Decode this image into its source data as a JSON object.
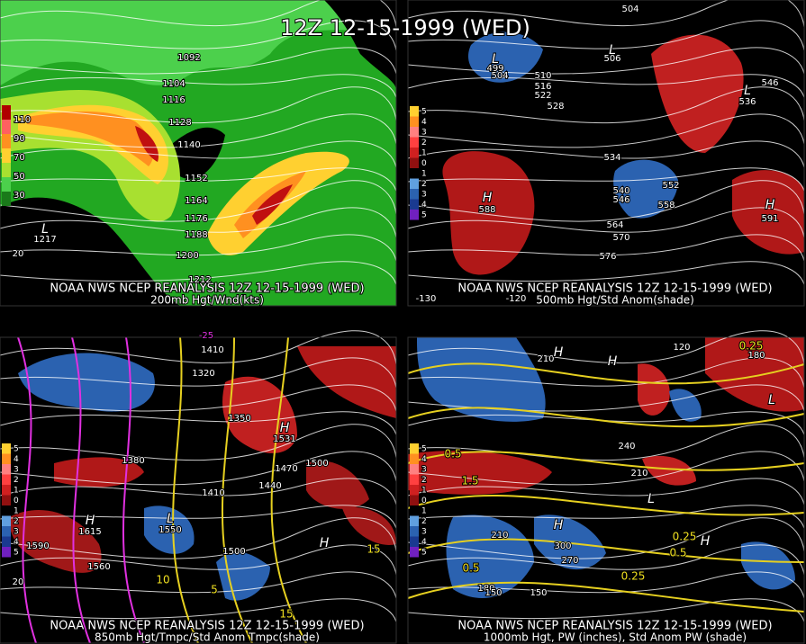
{
  "title": "12Z 12-15-1999 (WED)",
  "panels": [
    {
      "caption": "NOAA NWS NCEP REANALYSIS 12Z 12-15-1999 (WED)",
      "subcaption": "200mb Hgt/Wnd(kts)",
      "legend": [
        "110",
        "90",
        "70",
        "50",
        "30"
      ],
      "labels": [
        "1092",
        "1104",
        "1116",
        "1128",
        "1140",
        "1152",
        "1164",
        "1176",
        "1188",
        "1200",
        "1212",
        "L",
        "1217",
        "20"
      ]
    },
    {
      "caption": "NOAA NWS NCEP REANALYSIS 12Z 12-15-1999 (WED)",
      "subcaption": "500mb Hgt/Std Anom(shade)",
      "legend": [
        "5",
        "4",
        "3",
        "2",
        "1",
        "0",
        "1",
        "2",
        "3",
        "4",
        "5"
      ],
      "labels": [
        "L",
        "499",
        "504",
        "510",
        "516",
        "522",
        "528",
        "534",
        "540",
        "546",
        "552",
        "558",
        "564",
        "570",
        "576",
        "H",
        "588",
        "H",
        "591",
        "L",
        "506",
        "546",
        "L",
        "536",
        "504",
        "-130",
        "-120"
      ]
    },
    {
      "caption": "NOAA NWS NCEP REANALYSIS 12Z 12-15-1999 (WED)",
      "subcaption": "850mb Hgt/Tmpc/Std Anom Tmpc(shade)",
      "legend": [
        "5",
        "4",
        "3",
        "2",
        "1",
        "0",
        "1",
        "2",
        "3",
        "4",
        "5"
      ],
      "labels": [
        "1410",
        "-25",
        "1320",
        "1350",
        "H",
        "1531",
        "1380",
        "1470",
        "1500",
        "1440",
        "1410",
        "L",
        "1550",
        "1500",
        "H",
        "1615",
        "1590",
        "1560",
        "H",
        "15",
        "10",
        "5",
        "15",
        "20"
      ]
    },
    {
      "caption": "NOAA NWS NCEP REANALYSIS 12Z 12-15-1999 (WED)",
      "subcaption": "1000mb Hgt, PW (inches), Std Anom PW (shade)",
      "legend": [
        "5",
        "4",
        "3",
        "2",
        "1",
        "0",
        "1",
        "2",
        "3",
        "4",
        "5"
      ],
      "labels": [
        "120",
        "0.25",
        "180",
        "210",
        "H",
        "H",
        "L",
        "240",
        "210",
        "1.5",
        "0.5",
        "H",
        "300",
        "270",
        "210",
        "180",
        "150",
        "0.5",
        "0.25",
        "0.25",
        "0.5",
        "H",
        "L",
        "150"
      ]
    }
  ]
}
